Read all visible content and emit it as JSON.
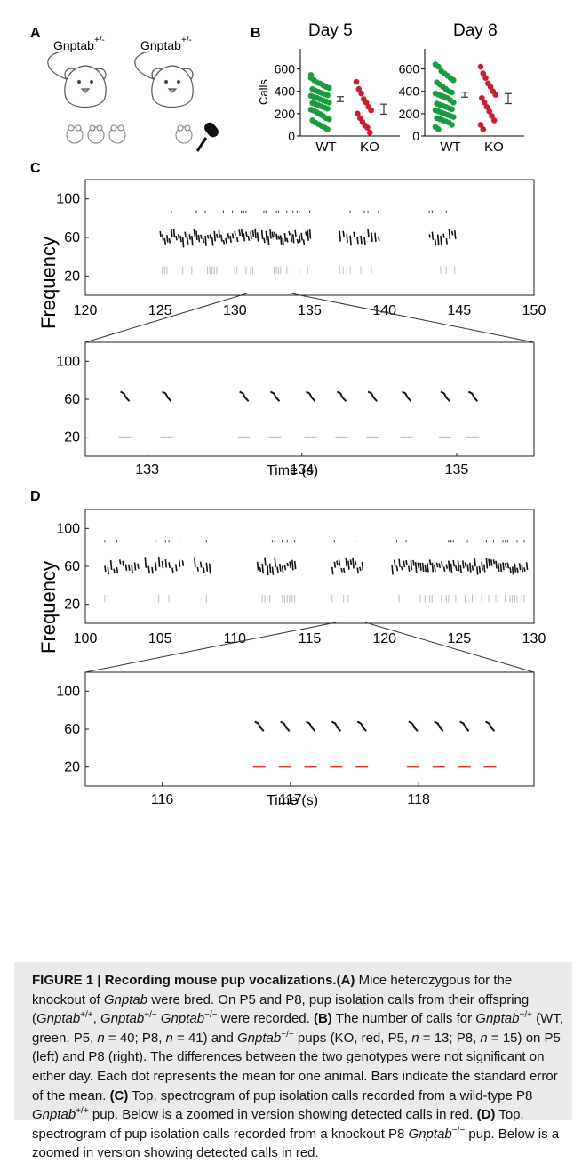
{
  "panels": {
    "A": {
      "label": "A",
      "mice": [
        {
          "name": "Gnptab",
          "superscript": "+/-"
        },
        {
          "name": "Gnptab",
          "superscript": "+/-"
        }
      ]
    },
    "B": {
      "label": "B",
      "chart_data": [
        {
          "type": "scatter",
          "title": "Day 5",
          "ylabel": "Calls",
          "categories": [
            "WT",
            "KO"
          ],
          "ylim": [
            0,
            700
          ],
          "yticks": [
            0,
            200,
            400,
            600
          ],
          "series": [
            {
              "name": "WT",
              "color": "#1a9b3e",
              "values": [
                520,
                500,
                480,
                470,
                455,
                440,
                430,
                420,
                405,
                395,
                385,
                375,
                365,
                360,
                350,
                340,
                330,
                320,
                310,
                300,
                295,
                285,
                275,
                265,
                255,
                245,
                235,
                225,
                210,
                195,
                180,
                160,
                150,
                140,
                120,
                105,
                90,
                75,
                60,
                545
              ]
            },
            {
              "name": "KO",
              "color": "#c81e32",
              "values": [
                485,
                420,
                380,
                330,
                300,
                260,
                230,
                200,
                160,
                125,
                95,
                75,
                30
              ]
            }
          ],
          "means": [
            330,
            240
          ],
          "sem": [
            22,
            45
          ]
        },
        {
          "type": "scatter",
          "title": "Day 8",
          "categories": [
            "WT",
            "KO"
          ],
          "ylim": [
            0,
            700
          ],
          "yticks": [
            0,
            200,
            400,
            600
          ],
          "series": [
            {
              "name": "WT",
              "color": "#1a9b3e",
              "values": [
                640,
                620,
                580,
                560,
                540,
                520,
                500,
                480,
                460,
                440,
                420,
                400,
                390,
                380,
                370,
                360,
                350,
                340,
                320,
                300,
                290,
                280,
                270,
                260,
                250,
                240,
                230,
                220,
                210,
                200,
                190,
                180,
                170,
                160,
                150,
                140,
                130,
                120,
                100,
                80,
                60
              ]
            },
            {
              "name": "KO",
              "color": "#c81e32",
              "values": [
                620,
                560,
                520,
                470,
                440,
                400,
                370,
                340,
                300,
                260,
                220,
                180,
                140,
                100,
                60
              ]
            }
          ],
          "means": [
            370,
            335
          ],
          "sem": [
            22,
            45
          ]
        }
      ]
    },
    "C": {
      "label": "C",
      "ylabel": "Frequency",
      "top": {
        "xticks": [
          "120",
          "125",
          "130",
          "135",
          "140",
          "145",
          "150"
        ],
        "yticks": [
          "100",
          "60",
          "20"
        ],
        "xlim": [
          120,
          150
        ],
        "call_groups": [
          {
            "start": 125,
            "end": 131.5,
            "count": 44
          },
          {
            "start": 131.8,
            "end": 135,
            "count": 24
          },
          {
            "start": 137,
            "end": 139.6,
            "count": 12
          },
          {
            "start": 143,
            "end": 144.7,
            "count": 10
          }
        ]
      },
      "zoom": {
        "xticks": [
          "133",
          "134",
          "135"
        ],
        "yticks": [
          "100",
          "60",
          "20"
        ],
        "xlabel": "Time (s)",
        "xlim": [
          132.6,
          135.5
        ],
        "calls": [
          132.85,
          133.12,
          133.62,
          133.82,
          134.05,
          134.25,
          134.45,
          134.67,
          134.92,
          135.1
        ]
      }
    },
    "D": {
      "label": "D",
      "ylabel": "Frequency",
      "top": {
        "xticks": [
          "100",
          "105",
          "110",
          "115",
          "120",
          "125",
          "130"
        ],
        "yticks": [
          "100",
          "60",
          "20"
        ],
        "xlim": [
          100,
          130
        ],
        "call_groups": [
          {
            "start": 101.3,
            "end": 103.5,
            "count": 12
          },
          {
            "start": 104,
            "end": 106.5,
            "count": 12
          },
          {
            "start": 107.3,
            "end": 108.3,
            "count": 6
          },
          {
            "start": 111.5,
            "end": 114,
            "count": 16
          },
          {
            "start": 116.5,
            "end": 118.5,
            "count": 14
          },
          {
            "start": 120.5,
            "end": 129.5,
            "count": 58
          }
        ]
      },
      "zoom": {
        "xticks": [
          "116",
          "117",
          "118"
        ],
        "yticks": [
          "100",
          "60",
          "20"
        ],
        "xlabel": "Time (s)",
        "xlim": [
          115.4,
          118.9
        ],
        "calls": [
          116.75,
          116.95,
          117.15,
          117.35,
          117.55,
          117.95,
          118.15,
          118.35,
          118.55
        ]
      }
    }
  },
  "caption": {
    "title": "FIGURE 1 | Recording mouse pup vocalizations.",
    "A_label": "(A)",
    "A_t1": " Mice heterozygous for the knockout of ",
    "gene": "Gnptab",
    "A_t2": " were bred. On P5 and P8, pup isolation calls from their offspring (",
    "sup_pp": "+/+",
    "comma": ", ",
    "sup_pm": "+/−",
    "space": " ",
    "sup_mm": "−/−",
    "A_t3": " were recorded. ",
    "B_label": "(B)",
    "B_t1": " The number of calls for ",
    "B_t2": " (WT, green, P5, ",
    "n": "n",
    "eq40": " = 40; P8, ",
    "eq41": " = 41) and ",
    "B_t3": " pups (KO, red, P5, ",
    "eq13": " = 13; P8, ",
    "eq15": " = 15) on P5 (left) and P8 (right). The differences between the two genotypes were not significant on either day. Each dot represents the mean for one animal. Bars indicate the standard error of the mean. ",
    "C_label": "(C)",
    "C_t1": " Top, spectrogram of pup isolation calls recorded from a wild-type P8 ",
    "C_t2": " pup. Below is a zoomed in version showing detected calls in red. ",
    "D_label": "(D)",
    "D_t1": " Top, spectrogram of pup isolation calls recorded from a knockout P8 ",
    "D_t2": " pup. Below is a zoomed in version showing detected calls in red."
  }
}
